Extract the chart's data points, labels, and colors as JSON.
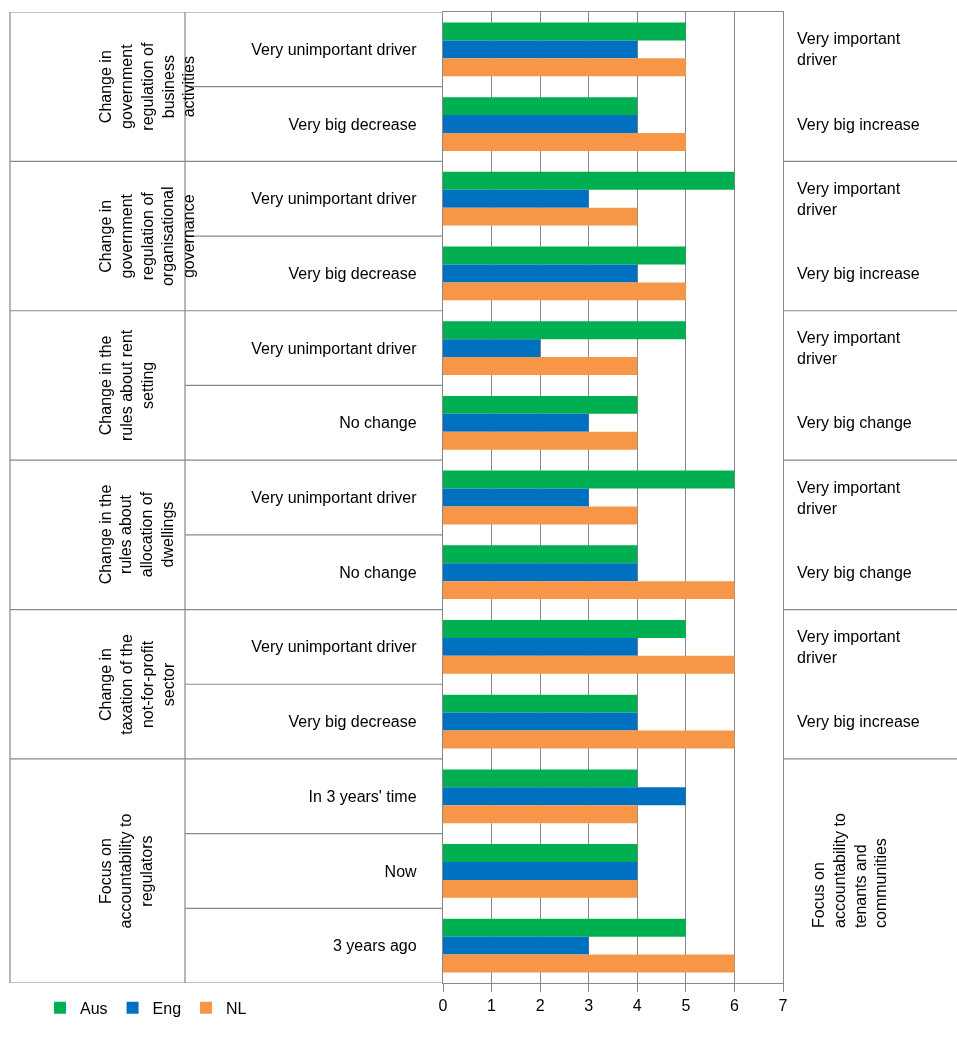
{
  "chart_data": {
    "type": "bar",
    "orientation": "horizontal",
    "categories": [
      "Very unimportant driver",
      "Very big decrease",
      "Very unimportant driver",
      "Very big decrease",
      "Very unimportant driver",
      "No change",
      "Very unimportant driver",
      "No change",
      "Very unimportant driver",
      "Very big decrease",
      "In 3 years' time",
      "Now",
      "3 years ago"
    ],
    "series": [
      {
        "name": "Aus",
        "color": "#00b050",
        "values": [
          5,
          4,
          6,
          5,
          5,
          4,
          6,
          4,
          5,
          4,
          4,
          4,
          5
        ]
      },
      {
        "name": "Eng",
        "color": "#0070c0",
        "values": [
          4,
          4,
          3,
          4,
          2,
          3,
          3,
          4,
          4,
          4,
          5,
          4,
          3
        ]
      },
      {
        "name": "NL",
        "color": "#f79646",
        "values": [
          5,
          5,
          4,
          5,
          4,
          4,
          4,
          6,
          6,
          6,
          4,
          4,
          6
        ]
      }
    ],
    "xlim": [
      0,
      7
    ],
    "xticks": [
      0,
      1,
      2,
      3,
      4,
      5,
      6,
      7
    ],
    "grid": "x",
    "legend": "bottom left",
    "annotations": [
      "Change in government regulation of business activities",
      "Change in government regulation of organisational governance",
      "Change in the rules about rent setting",
      "Change in the rules about allocation of dwellings",
      "Change in taxation of the not-for-profit sector",
      "Focus on accountability to regulators",
      "Very important driver",
      "Very big increase",
      "Very important driver",
      "Very big increase",
      "Very important driver",
      "Very big change",
      "Very important driver",
      "Very big change",
      "Very important driver",
      "Very big increase",
      "Focus on accountability to tenants and communities"
    ]
  }
}
